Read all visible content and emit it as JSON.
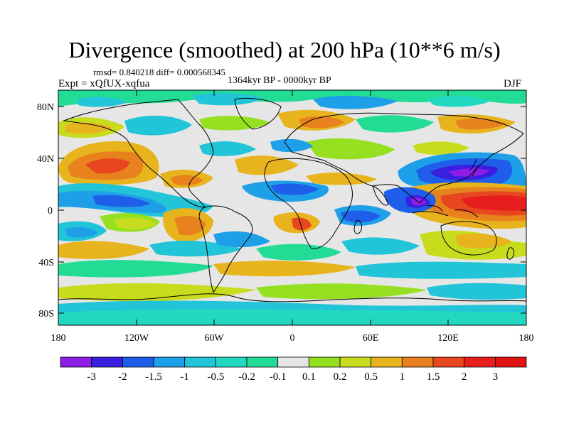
{
  "title": "Divergence (smoothed) at 200 hPa (10**6 m/s)",
  "stats": "rmsd= 0.840218 diff= 0.000568345",
  "period": "1364kyr BP - 0000kyr BP",
  "experiment": "Expt = xQfUX-xqfua",
  "season": "DJF",
  "lat_ticks": [
    "80N",
    "40N",
    "0",
    "40S",
    "80S"
  ],
  "lon_ticks": [
    "180",
    "120W",
    "60W",
    "0",
    "60E",
    "120E",
    "180"
  ],
  "colorbar": {
    "labels": [
      "-3",
      "-2",
      "-1.5",
      "-1",
      "-0.5",
      "-0.2",
      "-0.1",
      "0.1",
      "0.2",
      "0.5",
      "1",
      "1.5",
      "2",
      "3"
    ],
    "colors": [
      "#8c1ee8",
      "#3a1fe0",
      "#1e5ee8",
      "#1ea0e8",
      "#22c4d8",
      "#22d8c0",
      "#22dc96",
      "#e6e6e6",
      "#96e022",
      "#c8dc1e",
      "#e8b41e",
      "#e8821e",
      "#e8461e",
      "#e81e1e",
      "#e01414"
    ]
  }
}
